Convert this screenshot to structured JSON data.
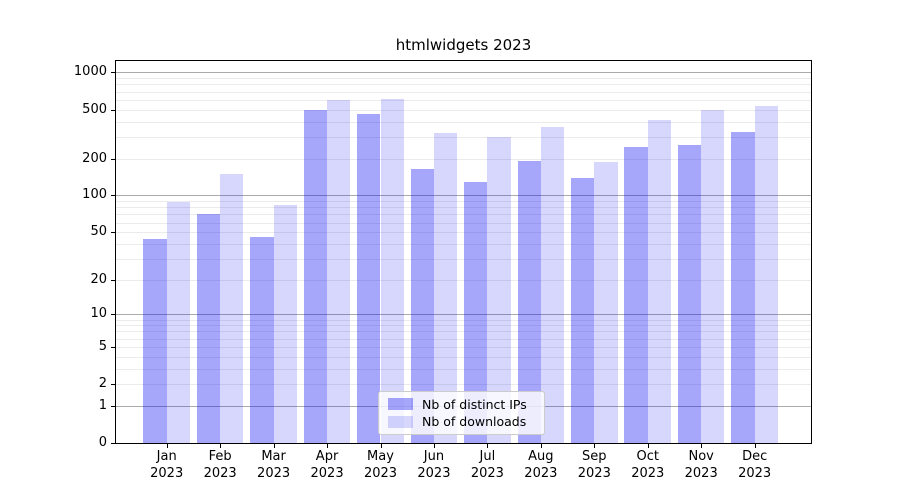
{
  "title": "htmlwidgets 2023",
  "colors": {
    "ips_bar": "#0202f05a",
    "downloads_bar": "#0202f028",
    "minor_grid": "#ebebeb",
    "decade_grid": "#ababab",
    "axis": "#000000",
    "legend_border": "#cccccc"
  },
  "legend": {
    "items": [
      {
        "label": "Nb of distinct IPs",
        "color_key": "ips_bar"
      },
      {
        "label": "Nb of downloads",
        "color_key": "downloads_bar"
      }
    ]
  },
  "chart_data": {
    "type": "bar",
    "title": "htmlwidgets 2023",
    "categories": [
      "Jan\n2023",
      "Feb\n2023",
      "Mar\n2023",
      "Apr\n2023",
      "May\n2023",
      "Jun\n2023",
      "Jul\n2023",
      "Aug\n2023",
      "Sep\n2023",
      "Oct\n2023",
      "Nov\n2023",
      "Dec\n2023"
    ],
    "series": [
      {
        "name": "Nb of distinct IPs",
        "values": [
          44,
          70,
          46,
          500,
          460,
          165,
          128,
          190,
          140,
          250,
          260,
          330
        ]
      },
      {
        "name": "Nb of downloads",
        "values": [
          88,
          150,
          84,
          595,
          610,
          325,
          298,
          360,
          188,
          410,
          500,
          530
        ]
      }
    ],
    "xlabel": "",
    "ylabel": "",
    "yscale": "log1p",
    "yticks": [
      0,
      1,
      2,
      5,
      10,
      20,
      50,
      100,
      200,
      500,
      1000
    ],
    "ylim": [
      0,
      1300
    ],
    "grid": true,
    "legend_position": "lower center"
  }
}
